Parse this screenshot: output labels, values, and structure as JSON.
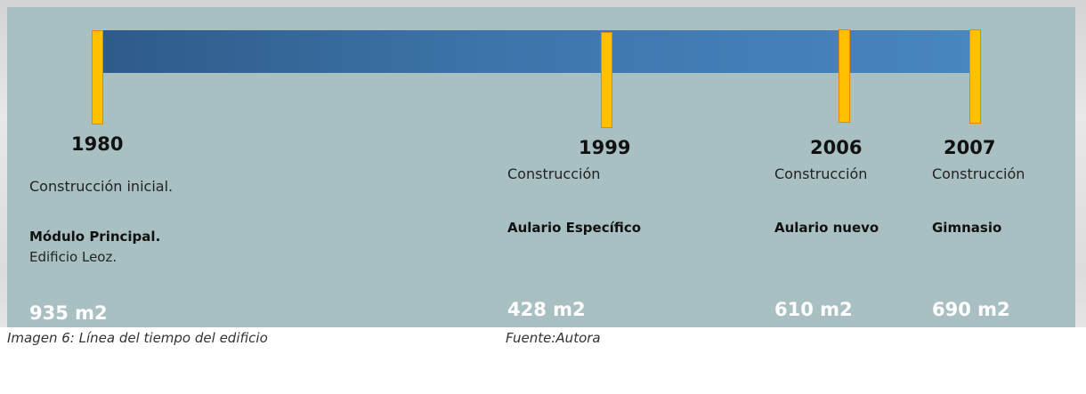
{
  "timeline": {
    "events": [
      {
        "year": "1980",
        "type": "Construcción inicial.",
        "name": "Módulo Principal.",
        "note": "Edificio Leoz.",
        "area": "935 m2"
      },
      {
        "year": "1999",
        "type": "Construcción",
        "name": "Aulario Específico",
        "area": "428 m2"
      },
      {
        "year": "2006",
        "type": "Construcción",
        "name": "Aulario nuevo",
        "area": "610 m2"
      },
      {
        "year": "2007",
        "type": "Construcción",
        "name": "Gimnasio",
        "area": "690 m2"
      }
    ]
  },
  "caption": "Imagen 6: Línea del tiempo del edificio",
  "source": "Fuente:Autora"
}
